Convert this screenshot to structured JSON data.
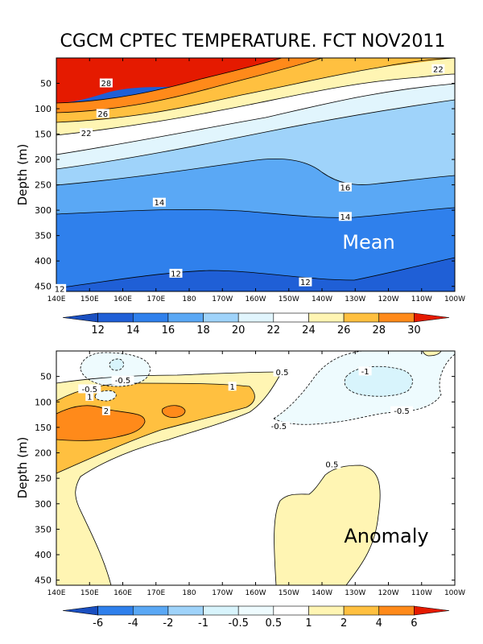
{
  "title": "CGCM CPTEC TEMPERATURE. FCT NOV2011",
  "colors": {
    "mean": {
      "t12": "#1f5fd6",
      "t14": "#2f80ec",
      "t16": "#5aa8f5",
      "t18": "#9fd3fa",
      "t20": "#e1f5fd",
      "t22": "#ffffff",
      "t24": "#fff5b3",
      "t26": "#ffc040",
      "t28": "#ff8a1a",
      "t30": "#e51a00",
      "t32": "#b40000"
    },
    "anom": {
      "neg1": "#d8f4fc",
      "neg05": "#eefbfe",
      "pos05": "#ffffff",
      "pos1": "#fff5b3",
      "pos2": "#ffc040",
      "pos4": "#ff8a1a"
    }
  },
  "chart_data": [
    {
      "type": "heatmap",
      "panel": "mean",
      "label": "Mean",
      "xlabel": "",
      "ylabel": "Depth (m)",
      "x_ticks": [
        "140E",
        "150E",
        "160E",
        "170E",
        "180",
        "170W",
        "160W",
        "150W",
        "140W",
        "130W",
        "120W",
        "110W",
        "100W"
      ],
      "y_ticks": [
        "50",
        "100",
        "150",
        "200",
        "250",
        "300",
        "350",
        "400",
        "450"
      ],
      "ylim": [
        460,
        0
      ],
      "contour_labels": [
        {
          "text": "28",
          "lon": 155,
          "depth": 50
        },
        {
          "text": "26",
          "lon": 154,
          "depth": 110
        },
        {
          "text": "22",
          "lon": 149,
          "depth": 148
        },
        {
          "text": "22",
          "lon": -105,
          "depth": 22
        },
        {
          "text": "16",
          "lon": -133,
          "depth": 255
        },
        {
          "text": "14",
          "lon": 171,
          "depth": 285
        },
        {
          "text": "14",
          "lon": -133,
          "depth": 313
        },
        {
          "text": "12",
          "lon": 176,
          "depth": 425
        },
        {
          "text": "12",
          "lon": -145,
          "depth": 442
        },
        {
          "text": "12",
          "lon": 141,
          "depth": 455
        }
      ],
      "colorbar": {
        "levels": [
          "12",
          "14",
          "16",
          "18",
          "20",
          "22",
          "24",
          "26",
          "28",
          "30"
        ]
      }
    },
    {
      "type": "heatmap",
      "panel": "anomaly",
      "label": "Anomaly",
      "xlabel": "",
      "ylabel": "Depth (m)",
      "x_ticks": [
        "140E",
        "150E",
        "160E",
        "170E",
        "180",
        "170W",
        "160W",
        "150W",
        "140W",
        "130W",
        "120W",
        "110W",
        "100W"
      ],
      "y_ticks": [
        "50",
        "100",
        "150",
        "200",
        "250",
        "300",
        "350",
        "400",
        "450"
      ],
      "ylim": [
        460,
        0
      ],
      "contour_labels": [
        {
          "text": "-0.5",
          "lon": 160,
          "depth": 58
        },
        {
          "text": "-0.5",
          "lon": 150,
          "depth": 75
        },
        {
          "text": "1",
          "lon": 150,
          "depth": 90
        },
        {
          "text": "2",
          "lon": 155,
          "depth": 118
        },
        {
          "text": "1",
          "lon": -167,
          "depth": 70
        },
        {
          "text": "0.5",
          "lon": -152,
          "depth": 42
        },
        {
          "text": "-1",
          "lon": -127,
          "depth": 40
        },
        {
          "text": "-0.5",
          "lon": -116,
          "depth": 118
        },
        {
          "text": "-0.5",
          "lon": -153,
          "depth": 148
        },
        {
          "text": "0.5",
          "lon": -137,
          "depth": 223
        }
      ],
      "colorbar": {
        "levels": [
          "-6",
          "-4",
          "-2",
          "-1",
          "-0.5",
          "0.5",
          "1",
          "2",
          "4",
          "6"
        ]
      }
    }
  ]
}
